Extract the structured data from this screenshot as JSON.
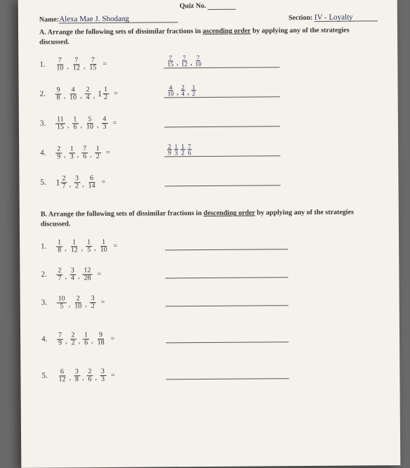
{
  "header": {
    "quiz_label": "Quiz No.",
    "name_label": "Name:",
    "name_value": "Alexa  Mae   J.  Shodang",
    "section_label": "Section:",
    "section_value": "IV - Loyalty"
  },
  "sectionA": {
    "letter": "A.",
    "text_before": "Arrange the following sets of dissimilar fractions in ",
    "key_word": "ascending order",
    "text_after": " by applying any of the strategies discussed.",
    "items": [
      {
        "num": "1.",
        "parts": [
          [
            "7",
            "10"
          ],
          [
            "7",
            "12"
          ],
          [
            "7",
            "15"
          ]
        ],
        "answer": [
          [
            "7",
            "15"
          ],
          [
            "7",
            "12"
          ],
          [
            "7",
            "10"
          ]
        ]
      },
      {
        "num": "2.",
        "parts": [
          [
            "9",
            "8"
          ],
          [
            "4",
            "10"
          ],
          [
            "2",
            "4"
          ]
        ],
        "mixed": {
          "whole": "1",
          "n": "1",
          "d": "2"
        },
        "answer": [
          [
            "4",
            "10"
          ],
          [
            "2",
            "4"
          ],
          [
            "1",
            "2"
          ]
        ],
        "prefix_whole": ""
      },
      {
        "num": "3.",
        "parts": [
          [
            "11",
            "15"
          ],
          [
            "1",
            "6"
          ],
          [
            "5",
            "10"
          ],
          [
            "4",
            "3"
          ]
        ],
        "answer": []
      },
      {
        "num": "4.",
        "parts": [
          [
            "2",
            "9"
          ],
          [
            "1",
            "3"
          ],
          [
            "7",
            "6"
          ],
          [
            "1",
            "2"
          ]
        ],
        "answer_frac": [
          [
            "2",
            "9"
          ],
          [
            "1",
            "3"
          ],
          [
            "1",
            "2"
          ],
          [
            "7",
            "6"
          ]
        ]
      },
      {
        "num": "5.",
        "mixed_first": {
          "whole": "1",
          "n": "2",
          "d": "7"
        },
        "parts": [
          [
            "3",
            "2"
          ],
          [
            "6",
            "14"
          ]
        ],
        "answer": []
      }
    ]
  },
  "sectionB": {
    "letter": "B.",
    "text_before": "Arrange the following sets of dissimilar fractions in ",
    "key_word": "descending order",
    "text_after": " by applying any of the strategies discussed.",
    "items": [
      {
        "num": "1.",
        "parts": [
          [
            "1",
            "8"
          ],
          [
            "1",
            "12"
          ],
          [
            "1",
            "5"
          ],
          [
            "1",
            "10"
          ]
        ]
      },
      {
        "num": "2.",
        "parts": [
          [
            "2",
            "7"
          ],
          [
            "3",
            "4"
          ],
          [
            "12",
            "28"
          ]
        ]
      },
      {
        "num": "3.",
        "parts": [
          [
            "10",
            "5"
          ],
          [
            "2",
            "10"
          ],
          [
            "3",
            "2"
          ]
        ]
      },
      {
        "num": "4.",
        "parts": [
          [
            "7",
            "9"
          ],
          [
            "2",
            "2"
          ],
          [
            "1",
            "6"
          ],
          [
            "9",
            "18"
          ]
        ]
      },
      {
        "num": "5.",
        "parts": [
          [
            "6",
            "12"
          ],
          [
            "3",
            "8"
          ],
          [
            "2",
            "6"
          ],
          [
            "3",
            "3"
          ]
        ]
      }
    ]
  }
}
